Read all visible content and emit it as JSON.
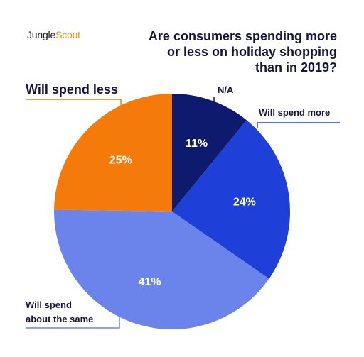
{
  "brand": {
    "part1": "Jungle",
    "part2": "Scout"
  },
  "chart_data": {
    "type": "pie",
    "title": "Are consumers spending more or less on holiday shopping than in 2019?",
    "title_lines": [
      "Are consumers spending more",
      "or less on holiday shopping",
      "than in 2019?"
    ],
    "slices": [
      {
        "label": "N/A",
        "value": 11,
        "display": "11%",
        "color": "#0d1a6e"
      },
      {
        "label": "Will spend more",
        "value": 24,
        "display": "24%",
        "color": "#1e3fd8"
      },
      {
        "label": "Will spend about the same",
        "value": 41,
        "display": "41%",
        "color": "#6b84ec"
      },
      {
        "label": "Will spend less",
        "value": 25,
        "display": "25%",
        "color": "#f47b0a"
      }
    ],
    "callouts": {
      "na": "N/A",
      "more": "Will spend more",
      "same_line1": "Will spend",
      "same_line2": "about the same",
      "less": "Will spend less"
    },
    "legend": "none"
  }
}
